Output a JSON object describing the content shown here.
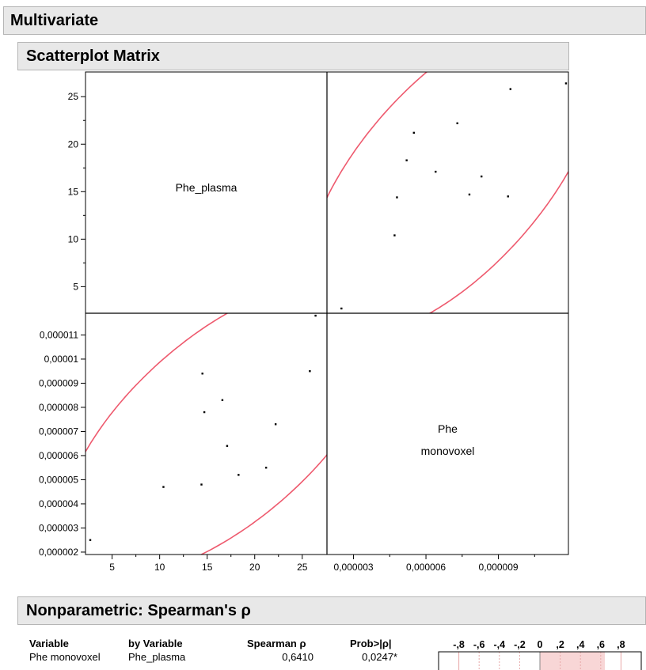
{
  "headers": {
    "main": "Multivariate",
    "scatter": "Scatterplot Matrix",
    "spearman": "Nonparametric: Spearman's ρ"
  },
  "chart_data": {
    "type": "scatter",
    "variables": [
      "Phe_plasma",
      "Phe monovoxel"
    ],
    "diagonal_labels": {
      "plasma": [
        "Phe_plasma"
      ],
      "monovoxel": [
        "Phe",
        "monovoxel"
      ]
    },
    "axes": {
      "plasma": {
        "range": [
          2.2,
          27.6
        ],
        "ticks": [
          5,
          10,
          15,
          20,
          25
        ],
        "tick_labels": [
          "5",
          "10",
          "15",
          "20",
          "25"
        ],
        "minor_ticks": [
          7.5,
          12.5,
          17.5,
          22.5
        ]
      },
      "monovoxel": {
        "range": [
          1.9e-06,
          1.19e-05
        ],
        "y_ticks": [
          2e-06,
          3e-06,
          4e-06,
          5e-06,
          6e-06,
          7e-06,
          8e-06,
          9e-06,
          1e-05,
          1.1e-05
        ],
        "y_tick_labels": [
          "0,000002",
          "0,000003",
          "0,000004",
          "0,000005",
          "0,000006",
          "0,000007",
          "0,000008",
          "0,000009",
          "0,00001",
          "0,000011"
        ],
        "x_ticks": [
          3e-06,
          6e-06,
          9e-06
        ],
        "x_tick_labels": [
          "0,000003",
          "0,000006",
          "0,000009"
        ],
        "x_minor_ticks": [
          4.5e-06,
          7.5e-06,
          1.05e-05
        ]
      }
    },
    "points": [
      {
        "plasma": 2.7,
        "monovoxel": 2.5e-06
      },
      {
        "plasma": 10.4,
        "monovoxel": 4.7e-06
      },
      {
        "plasma": 14.4,
        "monovoxel": 4.8e-06
      },
      {
        "plasma": 14.5,
        "monovoxel": 9.4e-06
      },
      {
        "plasma": 14.7,
        "monovoxel": 7.8e-06
      },
      {
        "plasma": 16.6,
        "monovoxel": 8.3e-06
      },
      {
        "plasma": 17.1,
        "monovoxel": 6.4e-06
      },
      {
        "plasma": 18.3,
        "monovoxel": 5.2e-06
      },
      {
        "plasma": 21.2,
        "monovoxel": 5.5e-06
      },
      {
        "plasma": 22.2,
        "monovoxel": 7.3e-06
      },
      {
        "plasma": 25.8,
        "monovoxel": 9.5e-06
      },
      {
        "plasma": 26.4,
        "monovoxel": 1.18e-05
      }
    ],
    "density_ellipse": {
      "color": "#ee5a6e",
      "center_plasma": 16.7,
      "center_monovoxel": 7.1e-06,
      "sd_plasma": 6.9,
      "sd_monovoxel": 2.5e-06,
      "r": 0.64,
      "scale": 2.45
    },
    "frame_color": "#000000"
  },
  "spearman": {
    "columns": [
      "Variable",
      "by Variable",
      "Spearman ρ",
      "Prob>|ρ|"
    ],
    "bar_scale": [
      "-,8",
      "-,6",
      "-,4",
      "-,2",
      "0",
      ",2",
      ",4",
      ",6",
      ",8"
    ],
    "rows": [
      {
        "variable": "Phe monovoxel",
        "by_variable": "Phe_plasma",
        "rho": "0,6410",
        "rho_value": 0.641,
        "prob": "0,0247*"
      }
    ],
    "bar_color": "#f8d6d6",
    "grid_color": "#e8a8a8"
  }
}
